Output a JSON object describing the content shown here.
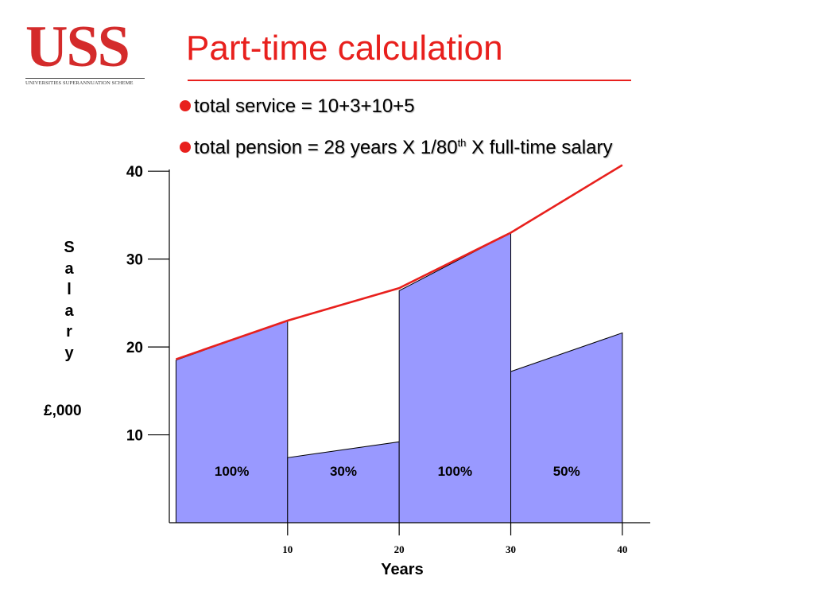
{
  "logo": {
    "main": "USS",
    "sub": "UNIVERSITIES SUPERANNUATION SCHEME",
    "color": "#d42b2b"
  },
  "title": "Part-time calculation",
  "bullets": [
    {
      "text": "total service = 10+3+10+5"
    },
    {
      "text_before": "total pension = 28 years X 1/80",
      "sup": "th",
      "text_after": " X full-time salary"
    }
  ],
  "colors": {
    "accent": "#e8201d",
    "area_fill": "#9999ff",
    "salary_line": "#e8201d",
    "axis": "#000000"
  },
  "chart_data": {
    "type": "area",
    "xlabel": "Years",
    "ylabel": "S a l a r y",
    "ylabel_unit": "£,000",
    "y_ticks": [
      10,
      20,
      30,
      40
    ],
    "x_ticks": [
      10,
      20,
      30,
      40
    ],
    "xlim": [
      -0.6,
      42.5
    ],
    "ylim": [
      0,
      40.2
    ],
    "grid": false,
    "full_time_salary": {
      "x": [
        0,
        10,
        20,
        30,
        40
      ],
      "y": [
        18.6,
        23.0,
        26.7,
        33.0,
        40.7
      ]
    },
    "segments": [
      {
        "label": "100%",
        "fraction": 1.0,
        "x_start": 0,
        "x_end": 10,
        "y_start": 18.5,
        "y_end": 23.0
      },
      {
        "label": "30%",
        "fraction": 0.3,
        "x_start": 10,
        "x_end": 20,
        "y_start": 7.4,
        "y_end": 9.2
      },
      {
        "label": "100%",
        "fraction": 1.0,
        "x_start": 20,
        "x_end": 30,
        "y_start": 26.4,
        "y_end": 33.0
      },
      {
        "label": "50%",
        "fraction": 0.5,
        "x_start": 30,
        "x_end": 40,
        "y_start": 17.2,
        "y_end": 21.6
      }
    ]
  }
}
